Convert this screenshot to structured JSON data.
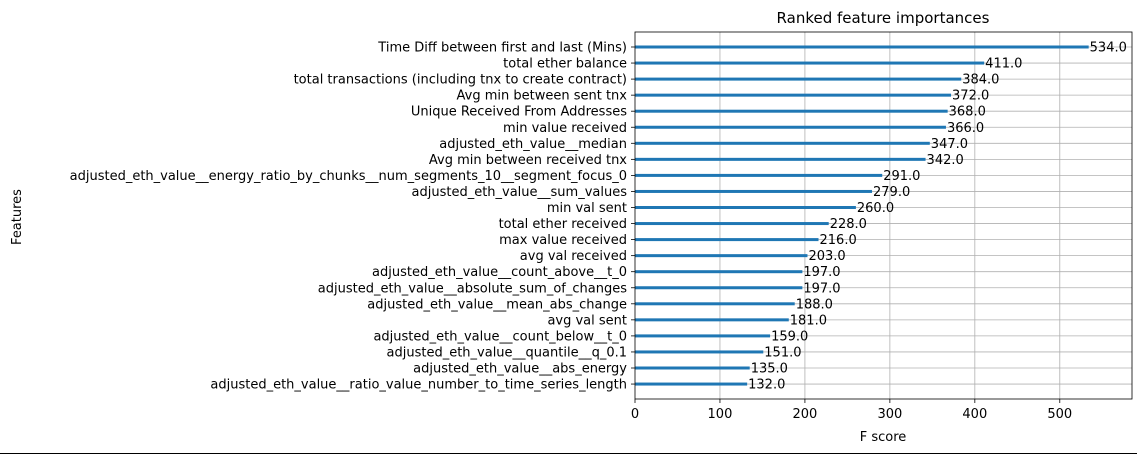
{
  "chart_data": {
    "type": "bar",
    "orientation": "horizontal",
    "title": "Ranked feature importances",
    "xlabel": "F score",
    "ylabel": "Features",
    "xlim": [
      0,
      585
    ],
    "xticks": [
      0,
      100,
      200,
      300,
      400,
      500
    ],
    "grid": true,
    "bar_color": "#1f77b4",
    "categories": [
      "Time Diff between first and last (Mins)",
      "total ether balance",
      "total transactions (including tnx to create contract)",
      "Avg min between sent tnx",
      "Unique Received From Addresses",
      "min value received",
      "adjusted_eth_value__median",
      "Avg min between received tnx",
      "adjusted_eth_value__energy_ratio_by_chunks__num_segments_10__segment_focus_0",
      "adjusted_eth_value__sum_values",
      "min val sent",
      "total ether received",
      "max value received",
      "avg val received",
      "adjusted_eth_value__count_above__t_0",
      "adjusted_eth_value__absolute_sum_of_changes",
      "adjusted_eth_value__mean_abs_change",
      "avg val sent",
      "adjusted_eth_value__count_below__t_0",
      "adjusted_eth_value__quantile__q_0.1",
      "adjusted_eth_value__abs_energy",
      "adjusted_eth_value__ratio_value_number_to_time_series_length"
    ],
    "values": [
      534.0,
      411.0,
      384.0,
      372.0,
      368.0,
      366.0,
      347.0,
      342.0,
      291.0,
      279.0,
      260.0,
      228.0,
      216.0,
      203.0,
      197.0,
      197.0,
      188.0,
      181.0,
      159.0,
      151.0,
      135.0,
      132.0
    ],
    "data_labels": [
      "534.0",
      "411.0",
      "384.0",
      "372.0",
      "368.0",
      "366.0",
      "347.0",
      "342.0",
      "291.0",
      "279.0",
      "260.0",
      "228.0",
      "216.0",
      "203.0",
      "197.0",
      "197.0",
      "188.0",
      "181.0",
      "159.0",
      "151.0",
      "135.0",
      "132.0"
    ]
  }
}
